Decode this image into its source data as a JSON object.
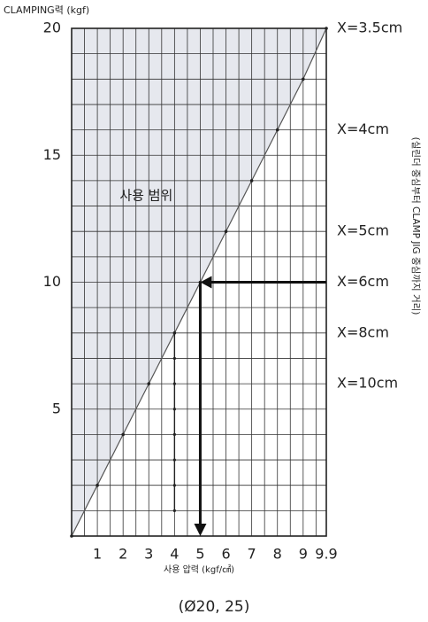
{
  "chart_data": {
    "type": "line",
    "ylabel": "CLAMPING력 (kgf)",
    "xlabel": "사용 압력 (kgf/㎠)",
    "side_label": "(실린더 중심부터 CLAMP JIG 중심까지 거리)",
    "caption": "(Ø20, 25)",
    "region_label": {
      "text": "사용 범위",
      "x": 2.9,
      "y": 13.4
    },
    "xlim": [
      0,
      9.9
    ],
    "ylim": [
      0,
      20
    ],
    "xticks": [
      1,
      2,
      3,
      4,
      5,
      6,
      7,
      8,
      9,
      9.9
    ],
    "yticks": [
      5,
      10,
      15,
      20
    ],
    "grid_step": [
      0.5,
      1
    ],
    "color": "#555555",
    "area_color": "#e6e8ee",
    "series": [
      {
        "x": [
          0,
          1,
          2,
          3,
          4,
          5,
          6,
          7,
          8,
          9,
          9.9
        ],
        "values": [
          0,
          2,
          4,
          6,
          8,
          10,
          12,
          14,
          16,
          18,
          20
        ]
      }
    ],
    "annotations": [
      {
        "text": "X=3.5cm",
        "y": 20
      },
      {
        "text": "X=4cm",
        "y": 16
      },
      {
        "text": "X=5cm",
        "y": 12
      },
      {
        "text": "X=6cm",
        "y": 10
      },
      {
        "text": "X=8cm",
        "y": 8
      },
      {
        "text": "X=10cm",
        "y": 6
      }
    ],
    "guide_line": {
      "x": 4,
      "y": [
        1,
        8
      ]
    },
    "arrow": {
      "from": [
        9.9,
        10
      ],
      "corner": [
        5,
        10
      ],
      "to": [
        5,
        0
      ]
    }
  }
}
